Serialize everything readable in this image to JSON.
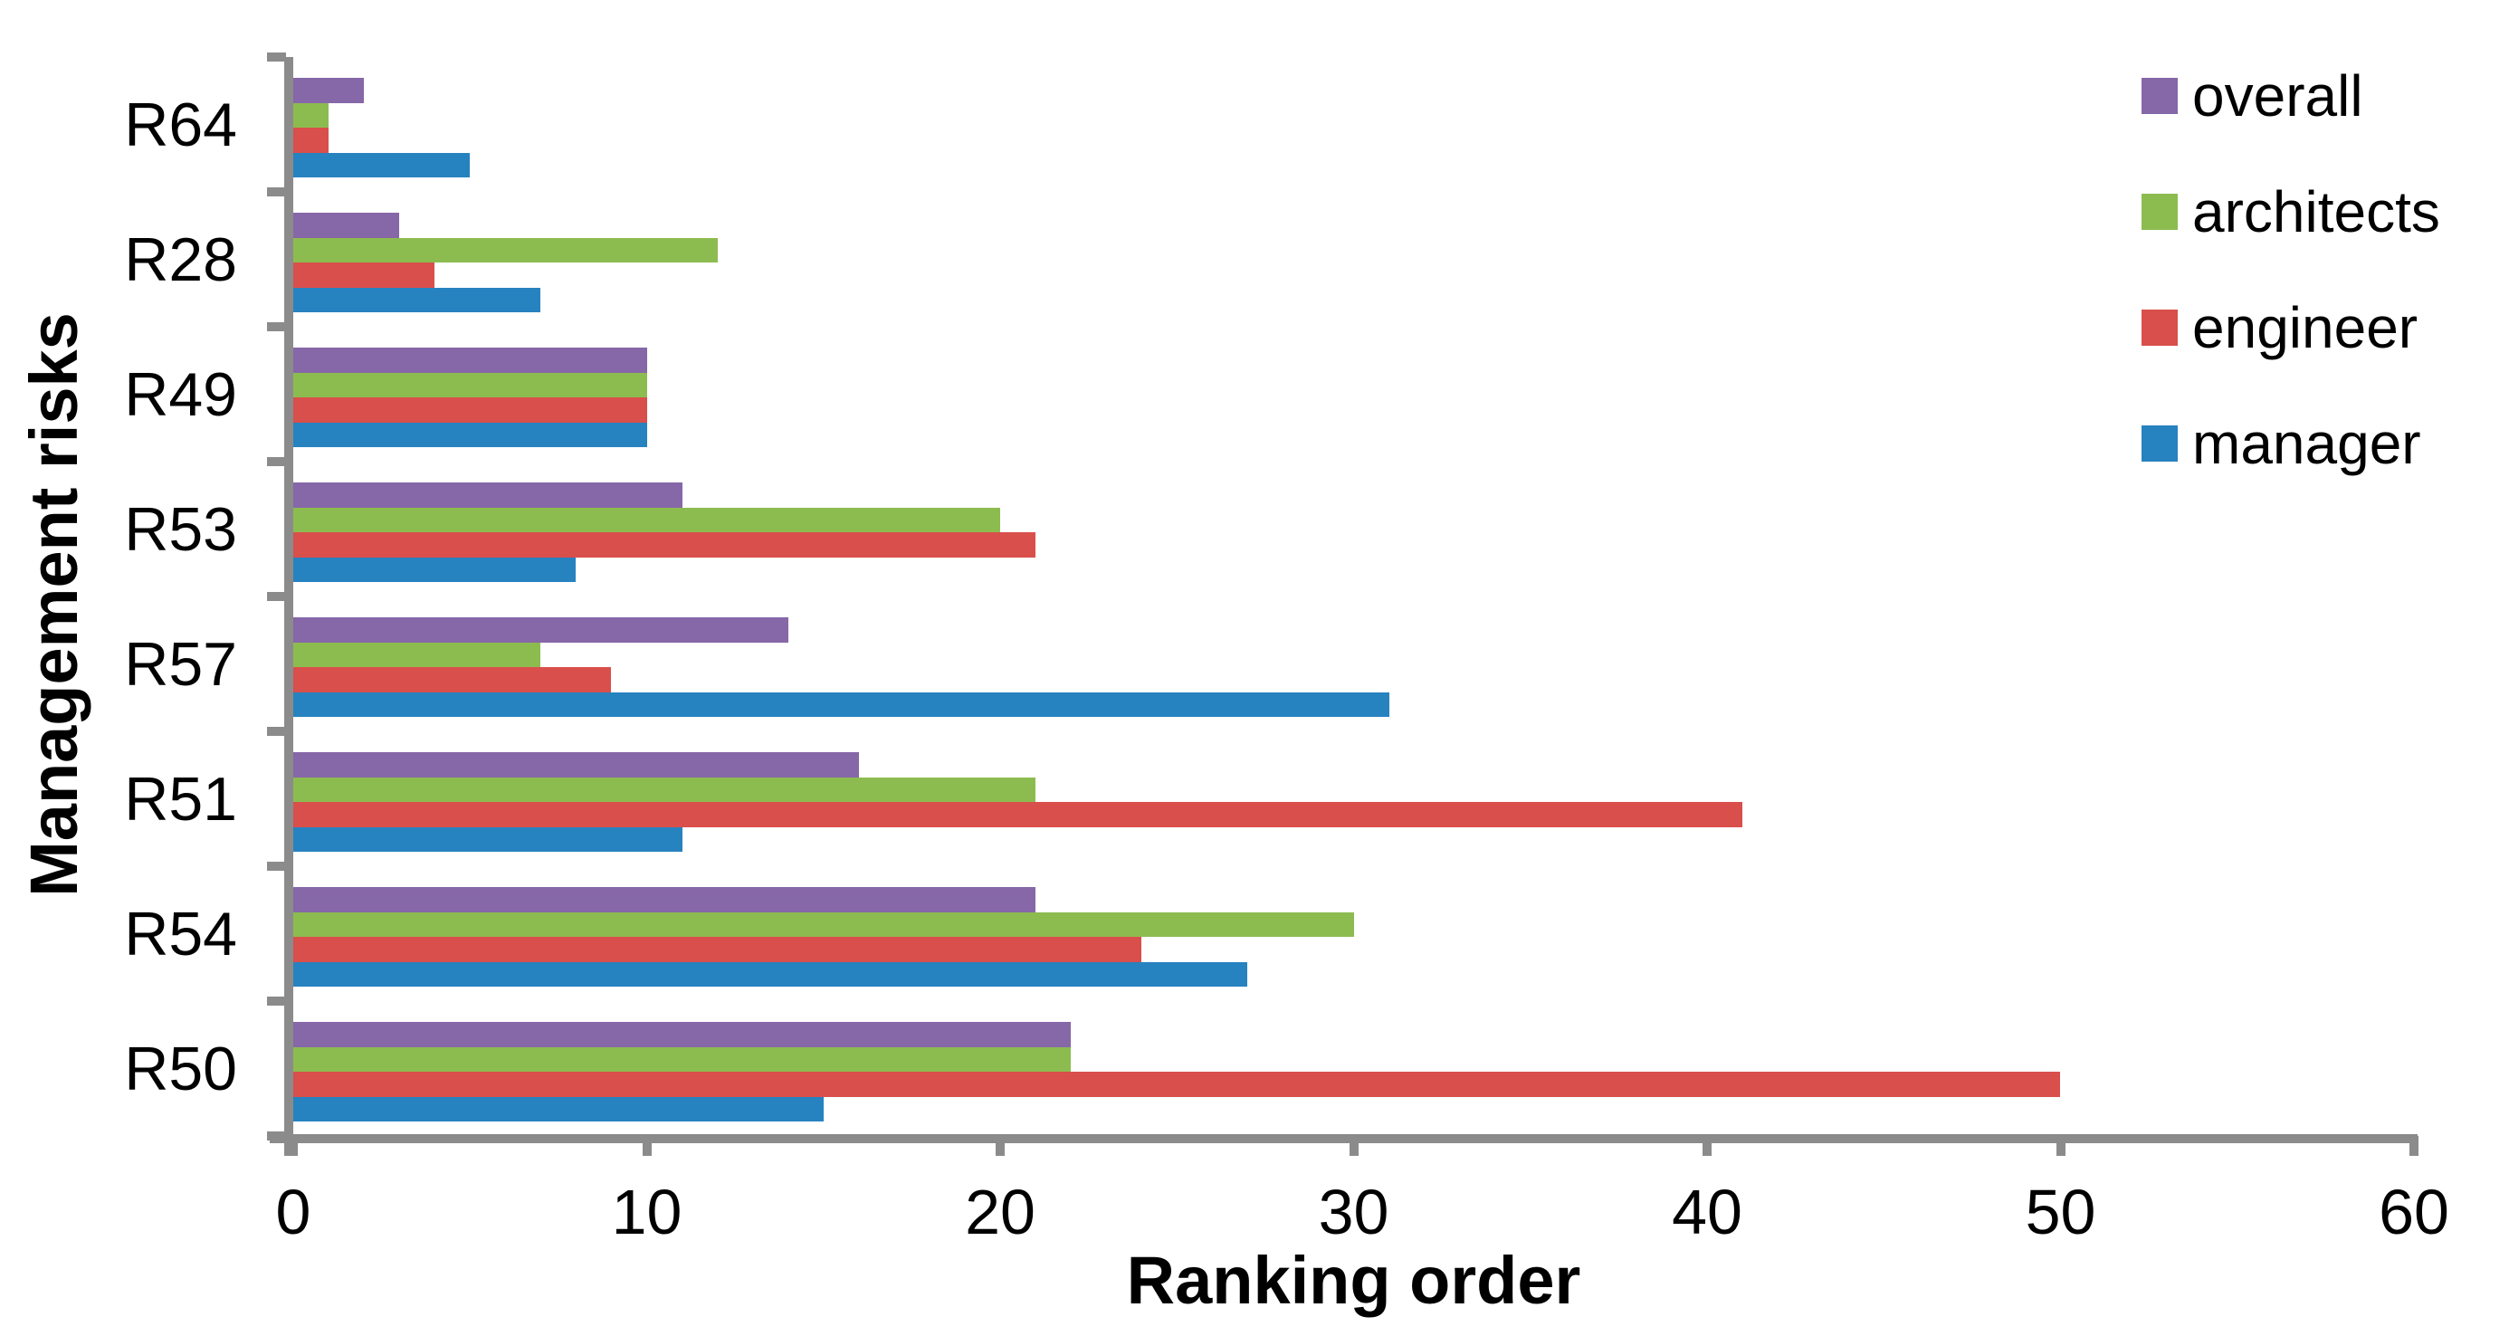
{
  "chart_data": {
    "type": "bar",
    "orientation": "horizontal",
    "title": "",
    "xlabel": "Ranking order",
    "ylabel": "Management risks",
    "xlim": [
      0,
      60
    ],
    "xticks": [
      0,
      10,
      20,
      30,
      40,
      50,
      60
    ],
    "grid": false,
    "legend_position": "top-right",
    "axis_color": "#8B8B8B",
    "categories": [
      "R64",
      "R28",
      "R49",
      "R53",
      "R57",
      "R51",
      "R54",
      "R50"
    ],
    "series": [
      {
        "name": "overall",
        "color": "#8667A8",
        "values": [
          2,
          3,
          10,
          11,
          14,
          16,
          21,
          22
        ]
      },
      {
        "name": "architects",
        "color": "#8CBC50",
        "values": [
          1,
          12,
          10,
          20,
          7,
          21,
          30,
          22
        ]
      },
      {
        "name": "engineer",
        "color": "#D94F4B",
        "values": [
          1,
          4,
          10,
          21,
          9,
          41,
          24,
          50
        ]
      },
      {
        "name": "manager",
        "color": "#2782C0",
        "values": [
          5,
          7,
          10,
          8,
          31,
          11,
          27,
          15
        ]
      }
    ]
  }
}
